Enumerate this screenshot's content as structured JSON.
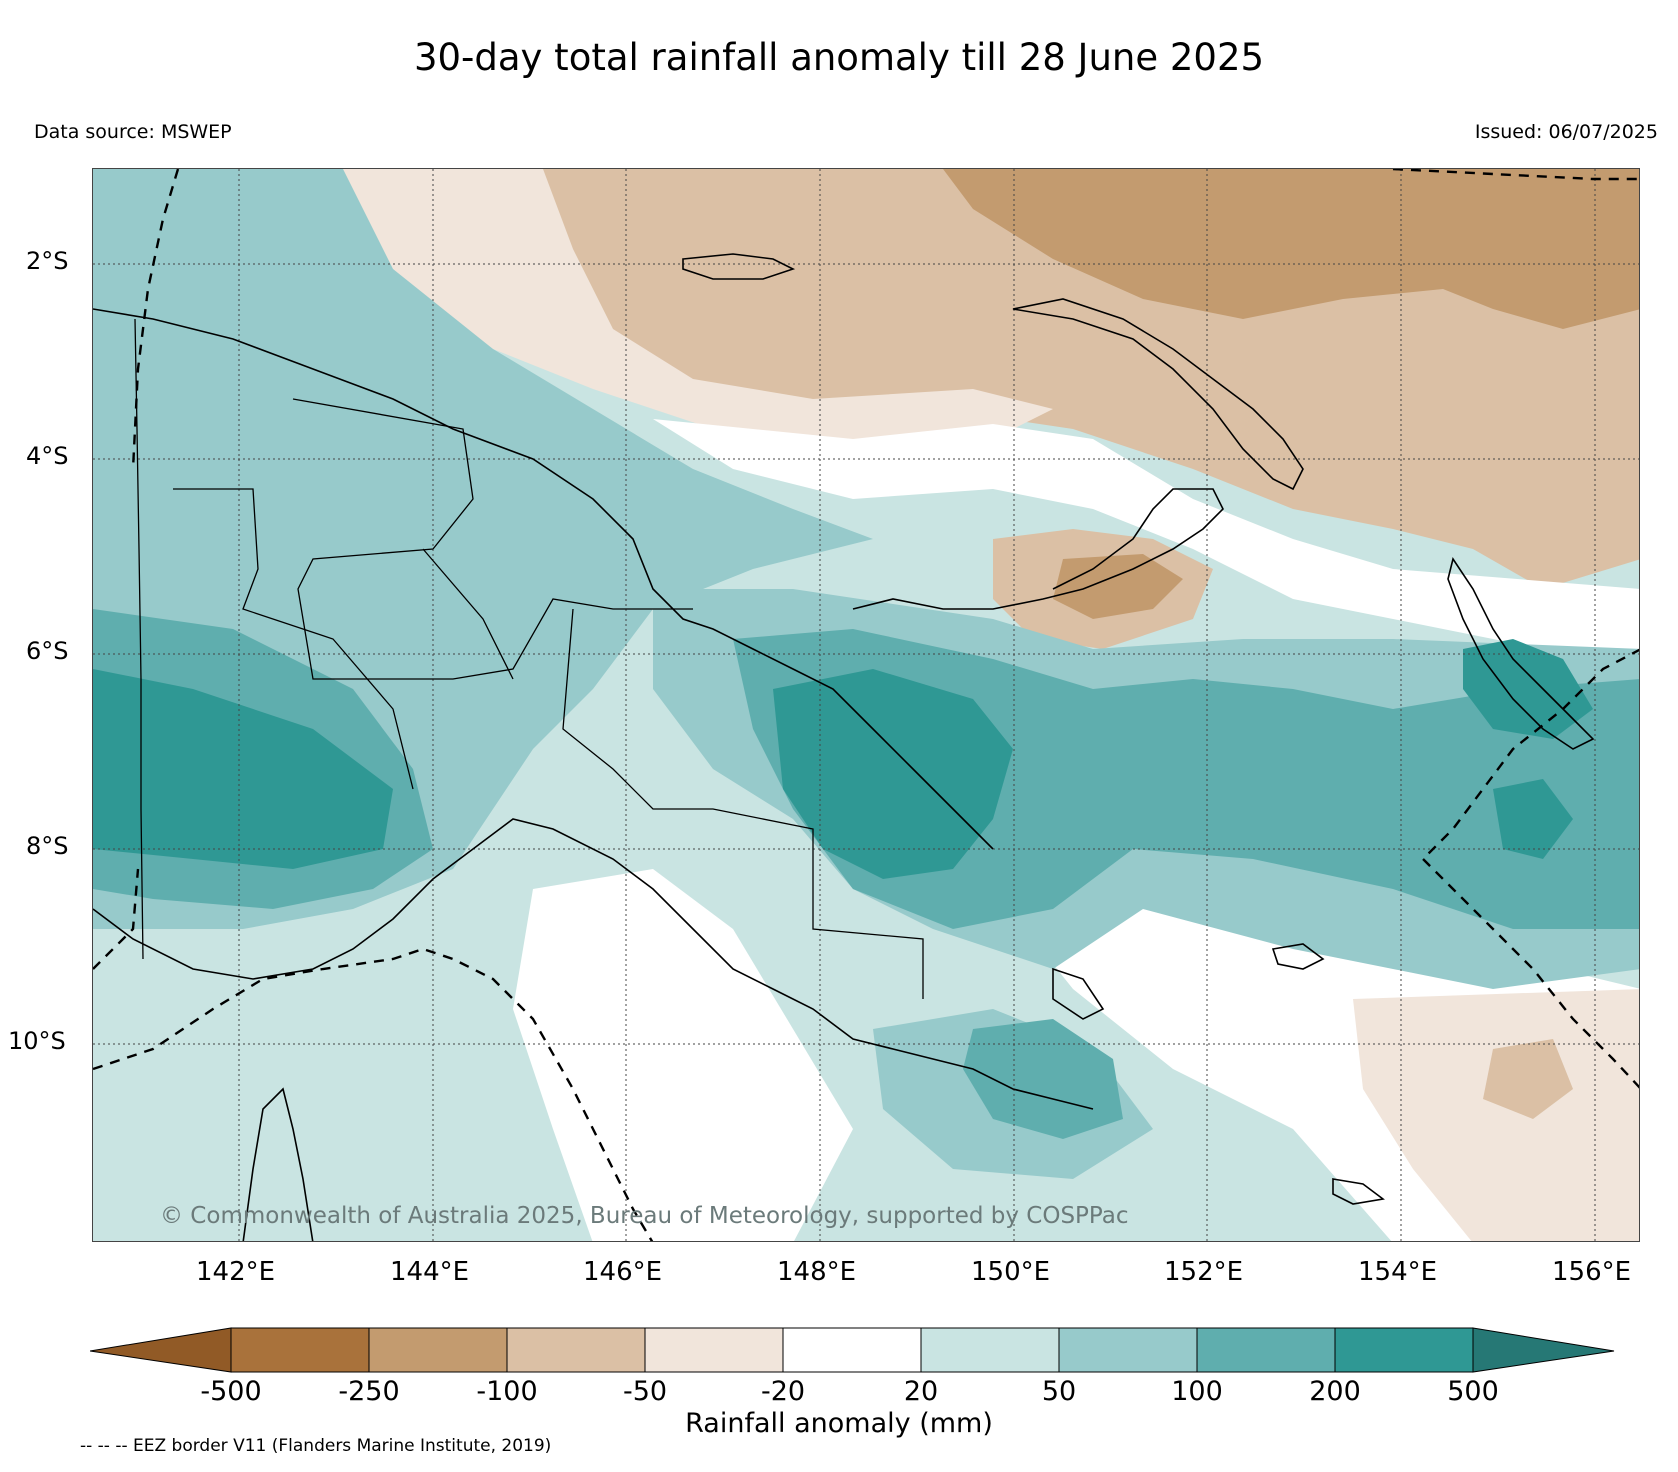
{
  "header": {
    "title": "30-day total rainfall anomaly till 28 June 2025",
    "source": "Data source: MSWEP",
    "issued": "Issued: 06/07/2025"
  },
  "map": {
    "lat_labels": [
      "2°S",
      "4°S",
      "6°S",
      "8°S",
      "10°S"
    ],
    "lon_labels": [
      "142°E",
      "144°E",
      "146°E",
      "148°E",
      "150°E",
      "152°E",
      "154°E",
      "156°E"
    ],
    "lat_range": [
      -12.4,
      -1.1
    ],
    "lon_range": [
      140.6,
      156.6
    ],
    "credit": "© Commonwealth of Australia 2025, Bureau of Meteorology, supported by COSPPac"
  },
  "colorbar": {
    "label": "Rainfall anomaly (mm)",
    "ticks": [
      "-500",
      "-250",
      "-100",
      "-50",
      "-20",
      "20",
      "50",
      "100",
      "200",
      "500"
    ],
    "colors": [
      "#915a26",
      "#a9723b",
      "#c39b6f",
      "#dbc0a5",
      "#f1e5db",
      "#ffffff",
      "#c9e4e2",
      "#97cacb",
      "#5faeae",
      "#2f9894",
      "#267875"
    ]
  },
  "footnote": "-- -- -- EEZ border V11 (Flanders Marine Institute, 2019)"
}
